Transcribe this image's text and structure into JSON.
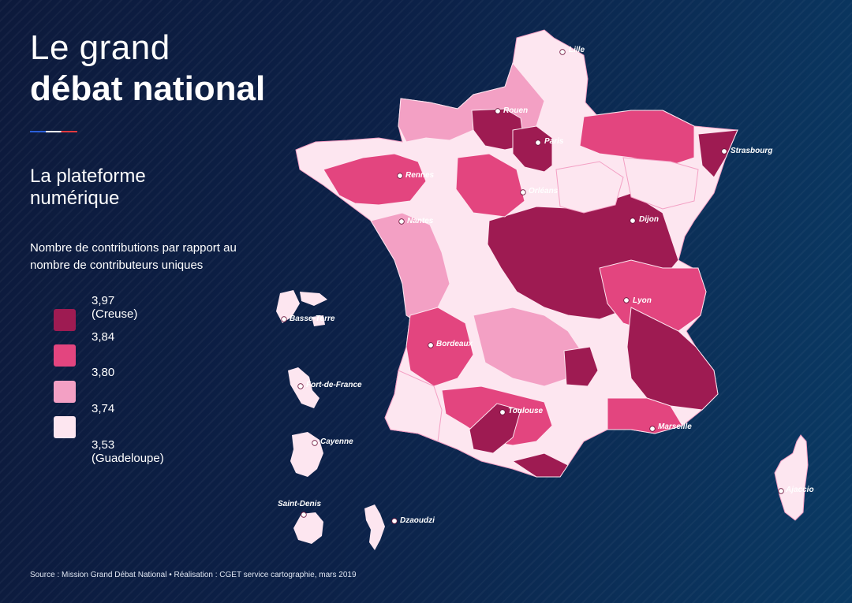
{
  "header": {
    "title_line1": "Le grand",
    "title_line2": "débat national",
    "subtitle": "La plateforme numérique",
    "description": "Nombre de contributions par rapport au nombre de contributeurs uniques"
  },
  "legend": [
    {
      "label": "3,97 (Creuse)",
      "color": "#9e1b52"
    },
    {
      "label": "3,84",
      "color": "#e3457f"
    },
    {
      "label": "3,80",
      "color": "#f3a0c4"
    },
    {
      "label": "3,74",
      "color": "#fde6f0"
    },
    {
      "label": "3,53 (Guadeloupe)",
      "color": ""
    }
  ],
  "cities": [
    {
      "name": "Lille"
    },
    {
      "name": "Rouen"
    },
    {
      "name": "Paris"
    },
    {
      "name": "Strasbourg"
    },
    {
      "name": "Rennes"
    },
    {
      "name": "Orléans"
    },
    {
      "name": "Nantes"
    },
    {
      "name": "Dijon"
    },
    {
      "name": "Lyon"
    },
    {
      "name": "Bordeaux"
    },
    {
      "name": "Toulouse"
    },
    {
      "name": "Marseille"
    },
    {
      "name": "Ajaccio"
    },
    {
      "name": "Basse-Terre"
    },
    {
      "name": "Fort-de-France"
    },
    {
      "name": "Cayenne"
    },
    {
      "name": "Saint-Denis"
    },
    {
      "name": "Dzaoudzi"
    }
  ],
  "source": "Source : Mission Grand Débat National • Réalisation : CGET service cartographie, mars 2019"
}
